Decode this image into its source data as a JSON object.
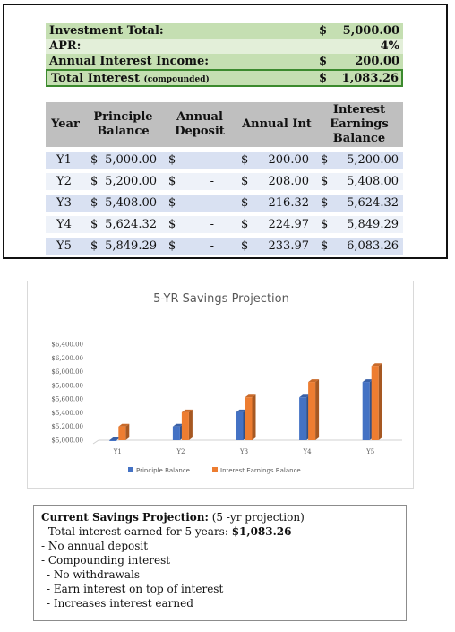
{
  "summary": {
    "investment_total": {
      "label": "Investment Total:",
      "currency": "$",
      "value": "5,000.00"
    },
    "apr": {
      "label": "APR:",
      "currency": "",
      "value": "4%"
    },
    "annual_interest_income": {
      "label": "Annual Interest Income:",
      "currency": "$",
      "value": "200.00"
    },
    "total_interest": {
      "label": "Total Interest",
      "qualifier": "(compounded)",
      "currency": "$",
      "value": "1,083.26"
    }
  },
  "table": {
    "headers": [
      "Year",
      "Principle Balance",
      "Annual Deposit",
      "Annual Int",
      "Interest Earnings Balance"
    ],
    "rows": [
      {
        "year": "Y1",
        "principle_cur": "$",
        "principle": "5,000.00",
        "deposit_cur": "$",
        "deposit": "-",
        "int_cur": "$",
        "int": "200.00",
        "bal_cur": "$",
        "bal": "5,200.00"
      },
      {
        "year": "Y2",
        "principle_cur": "$",
        "principle": "5,200.00",
        "deposit_cur": "$",
        "deposit": "-",
        "int_cur": "$",
        "int": "208.00",
        "bal_cur": "$",
        "bal": "5,408.00"
      },
      {
        "year": "Y3",
        "principle_cur": "$",
        "principle": "5,408.00",
        "deposit_cur": "$",
        "deposit": "-",
        "int_cur": "$",
        "int": "216.32",
        "bal_cur": "$",
        "bal": "5,624.32"
      },
      {
        "year": "Y4",
        "principle_cur": "$",
        "principle": "5,624.32",
        "deposit_cur": "$",
        "deposit": "-",
        "int_cur": "$",
        "int": "224.97",
        "bal_cur": "$",
        "bal": "5,849.29"
      },
      {
        "year": "Y5",
        "principle_cur": "$",
        "principle": "5,849.29",
        "deposit_cur": "$",
        "deposit": "-",
        "int_cur": "$",
        "int": "233.97",
        "bal_cur": "$",
        "bal": "6,083.26"
      }
    ]
  },
  "chart_data": {
    "type": "bar",
    "title": "5-YR Savings Projection",
    "categories": [
      "Y1",
      "Y2",
      "Y3",
      "Y4",
      "Y5"
    ],
    "series": [
      {
        "name": "Principle Balance",
        "color": "#4472c4",
        "values": [
          5000.0,
          5200.0,
          5408.0,
          5624.32,
          5849.29
        ]
      },
      {
        "name": "Interest Earnings Balance",
        "color": "#ed7d31",
        "values": [
          5200.0,
          5408.0,
          5624.32,
          5849.29,
          6083.26
        ]
      }
    ],
    "ylim": [
      5000,
      6400
    ],
    "yticks": [
      "$5,000.00",
      "$5,200.00",
      "$5,400.00",
      "$5,600.00",
      "$5,800.00",
      "$6,000.00",
      "$6,200.00",
      "$6,400.00"
    ],
    "xlabel": "",
    "ylabel": "",
    "legend_position": "bottom",
    "grid": false
  },
  "notes": {
    "heading": "Current Savings Projection:",
    "heading_suffix": "(5 -yr projection)",
    "total_prefix": "- Total interest earned for 5 years:",
    "total_value": "$1,083.26",
    "lines": [
      "- No annual deposit",
      "- Compounding interest",
      "- No withdrawals",
      "- Earn interest on top of interest",
      "- Increases interest earned"
    ]
  }
}
